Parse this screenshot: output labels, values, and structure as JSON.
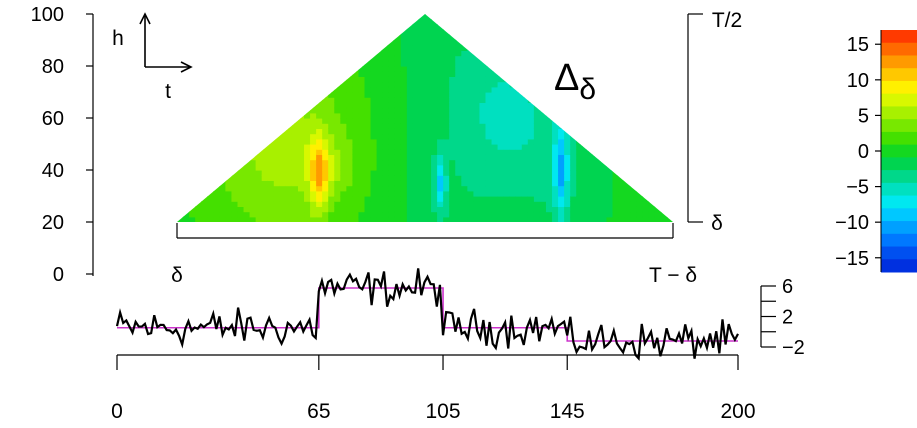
{
  "chart_data": [
    {
      "type": "heatmap",
      "title": "Δδ",
      "title_parts": {
        "main": "Δ",
        "subscript": "δ"
      },
      "y_axis": {
        "label": "h",
        "ticks": [
          0,
          20,
          40,
          60,
          80,
          100
        ],
        "ylim": [
          0,
          100
        ]
      },
      "x_axis": {
        "label": "t",
        "left_label": "δ",
        "right_label": "T − δ"
      },
      "right_axis": {
        "top_label": "T/2",
        "bottom_label": "δ"
      },
      "triangle": {
        "t_min": 18,
        "t_max": 182,
        "t_peak": 100,
        "h_min": 20,
        "h_max": 100
      },
      "hotspots": [
        {
          "t": 65,
          "h": 38,
          "value": 14,
          "sigma_t": 3.2,
          "sigma_h": 15
        },
        {
          "t": 105,
          "h": 35,
          "value": -12,
          "sigma_t": 2.0,
          "sigma_h": 10
        },
        {
          "t": 145,
          "h": 40,
          "value": -15,
          "sigma_t": 2.4,
          "sigma_h": 18
        }
      ],
      "colorbar": {
        "ticks": [
          15,
          10,
          5,
          0,
          -5,
          -10,
          -15
        ],
        "range": [
          -17,
          17
        ],
        "colors": [
          "#ff3a00",
          "#ff6a00",
          "#ff9a00",
          "#ffc800",
          "#fff000",
          "#d8f800",
          "#a8f000",
          "#78e800",
          "#44e000",
          "#14d820",
          "#00d450",
          "#00d88a",
          "#00e0c0",
          "#00e8f0",
          "#00c8ff",
          "#00a0ff",
          "#0078ff",
          "#0050f0",
          "#0030e0"
        ]
      }
    },
    {
      "type": "line",
      "x_ticks": [
        0,
        65,
        105,
        145,
        200
      ],
      "y_ticks": [
        6,
        2,
        -2
      ],
      "ylim": [
        -3,
        7
      ],
      "xlim": [
        0,
        200
      ],
      "signal_segments": [
        {
          "from": 0,
          "to": 65,
          "level": 0
        },
        {
          "from": 65,
          "to": 105,
          "level": 6
        },
        {
          "from": 105,
          "to": 145,
          "level": 0
        },
        {
          "from": 145,
          "to": 200,
          "level": -2
        }
      ],
      "noise_amplitude": 0.85,
      "colors": {
        "data": "#000000",
        "signal": "#cc33cc"
      }
    }
  ]
}
